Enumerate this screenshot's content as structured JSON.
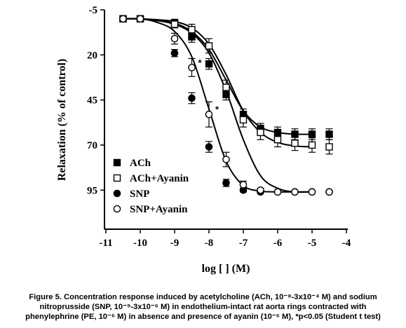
{
  "chart_data": {
    "type": "line",
    "xlabel": "log [ ] (M)",
    "ylabel": "Relaxation (% of control)",
    "xlim": [
      -11,
      -4
    ],
    "ylim": [
      -5,
      105
    ],
    "y_axis_inverted": true,
    "xticks": [
      "-11",
      "-10",
      "-9",
      "-8",
      "-7",
      "-6",
      "-5",
      "-4"
    ],
    "yticks": [
      "-5",
      "20",
      "45",
      "70",
      "95"
    ],
    "legend_position": "bottom-left",
    "grid": false,
    "significance_marker": "*",
    "series": [
      {
        "name": "ACh",
        "marker": "filled-square",
        "x": [
          -10.5,
          -10,
          -9,
          -8.5,
          -8,
          -7.5,
          -7,
          -6.5,
          -6,
          -5.5,
          -5,
          -4.5
        ],
        "y": [
          0,
          0,
          2,
          10,
          25,
          42,
          53,
          61,
          63,
          64,
          64,
          64
        ],
        "err": [
          0.5,
          0.5,
          1.5,
          3,
          3,
          3,
          3,
          3,
          3,
          3,
          3,
          3
        ],
        "fit_y": [
          0,
          0,
          1,
          2.5,
          7,
          17,
          34,
          51,
          60,
          63,
          64,
          64,
          64,
          64
        ]
      },
      {
        "name": "ACh+Ayanin",
        "marker": "open-square",
        "x": [
          -10.5,
          -10,
          -9,
          -8.5,
          -8,
          -7.5,
          -7,
          -6.5,
          -6,
          -5.5,
          -5,
          -4.5
        ],
        "y": [
          0,
          0,
          3,
          6,
          15,
          38,
          56,
          63,
          67,
          69,
          70,
          71
        ],
        "err": [
          0.5,
          0.5,
          2,
          3,
          4,
          4,
          4,
          4,
          4,
          4,
          4,
          4
        ],
        "fit_y": [
          0,
          0,
          0.5,
          1.5,
          5,
          14,
          31,
          51,
          63,
          68.5,
          70.5,
          71,
          71,
          71
        ]
      },
      {
        "name": "SNP",
        "marker": "filled-circle",
        "x": [
          -10.5,
          -10,
          -9,
          -8.5,
          -8,
          -7.5,
          -7,
          -6.5,
          -6,
          -5.5,
          -5,
          -4.5
        ],
        "y": [
          0,
          0,
          19,
          44,
          71,
          91,
          95,
          96,
          96,
          96,
          96,
          96
        ],
        "err": [
          0.5,
          0.5,
          2,
          3,
          3,
          2,
          1,
          0.5,
          0.5,
          0.5,
          0.5,
          0.5
        ],
        "fit_y": [
          0,
          0,
          2,
          7,
          21,
          50,
          79,
          92.5,
          95.5,
          96,
          96,
          96,
          96,
          96
        ]
      },
      {
        "name": "SNP+Ayanin",
        "marker": "open-circle",
        "x": [
          -10.5,
          -10,
          -9,
          -8.5,
          -8,
          -7.5,
          -7,
          -6.5,
          -6,
          -5.5,
          -5,
          -4.5
        ],
        "y": [
          0,
          0,
          11,
          27,
          53,
          78,
          92,
          95,
          96,
          96,
          96,
          96
        ],
        "err": [
          0.5,
          0.5,
          3,
          5,
          7,
          4,
          2,
          1,
          0.5,
          0.5,
          0.5,
          0.5
        ],
        "fit_y": [
          0,
          0,
          1,
          3,
          8,
          19,
          40,
          67,
          87,
          94,
          96,
          96,
          96,
          96
        ]
      }
    ]
  },
  "caption": {
    "line1": "Figure 5. Concentration response induced by acetylcholine (ACh, 10⁻⁸-3x10⁻⁴ M) and sodium",
    "line2": "nitroprusside (SNP, 10⁻⁹-3x10⁻⁶ M) in endothelium-intact rat aorta rings contracted with",
    "line3": "phenylephrine (PE, 10⁻⁶ M) in absence and presence of ayanin (10⁻⁶ M), *p<0.05 (Student t test)"
  }
}
